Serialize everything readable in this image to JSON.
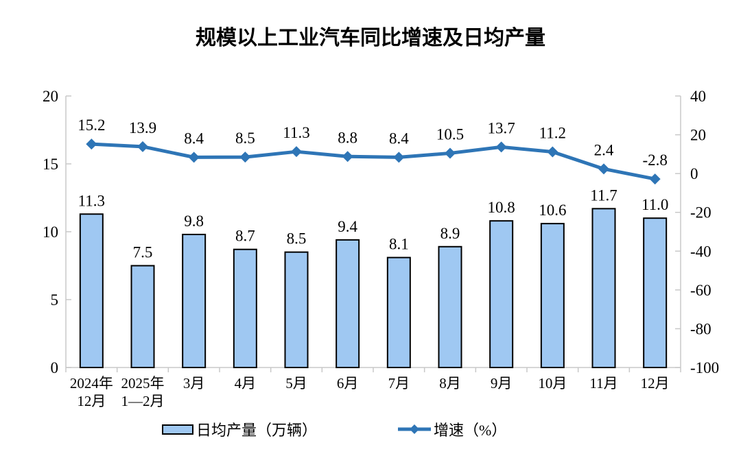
{
  "title": "规模以上工业汽车同比增速及日均产量",
  "chart_data": {
    "type": "combo-bar-line",
    "title": "规模以上工业汽车同比增速及日均产量",
    "categories": [
      "2024年\n12月",
      "2025年\n1—2月",
      "3月",
      "4月",
      "5月",
      "6月",
      "7月",
      "8月",
      "9月",
      "10月",
      "11月",
      "12月"
    ],
    "series": [
      {
        "name": "日均产量（万辆）",
        "type": "bar",
        "axis": "left",
        "values": [
          11.3,
          7.5,
          9.8,
          8.7,
          8.5,
          9.4,
          8.1,
          8.9,
          10.8,
          10.6,
          11.7,
          11.0
        ]
      },
      {
        "name": "增速（%）",
        "type": "line",
        "axis": "right",
        "values": [
          15.2,
          13.9,
          8.4,
          8.5,
          11.3,
          8.8,
          8.4,
          10.5,
          13.7,
          11.2,
          2.4,
          -2.8
        ]
      }
    ],
    "left_axis": {
      "min": 0,
      "max": 20,
      "step": 5
    },
    "right_axis": {
      "min": -100,
      "max": 40,
      "step": 20
    },
    "grid": false,
    "data_labels": true,
    "legend_position": "bottom"
  },
  "colors": {
    "background": "#FFFFFF",
    "text": "#000000",
    "axis": "#C8C8C8",
    "bar_fill": "#9FC8F2",
    "bar_stroke": "#000000",
    "line": "#2E75B6"
  }
}
